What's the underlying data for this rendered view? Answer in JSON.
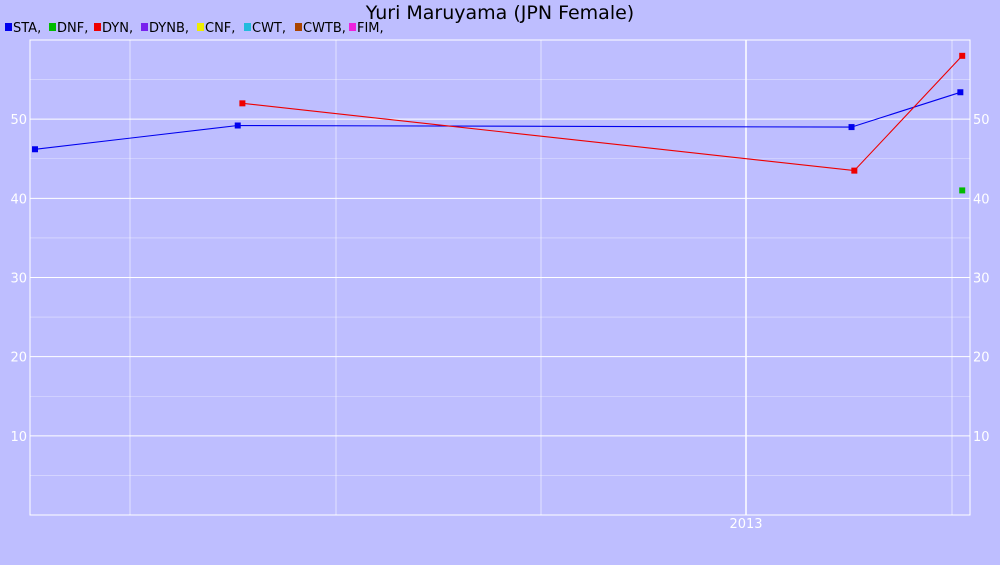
{
  "chart_data": {
    "type": "line",
    "title": "Yuri Maruyama (JPN Female)",
    "legend_position": "top-left",
    "xlabel": "",
    "ylabel": "",
    "x_tick_labels": [
      "2013"
    ],
    "y_ticks": [
      10,
      20,
      30,
      40,
      50
    ],
    "ylim": [
      0,
      60
    ],
    "grid": true,
    "colors": {
      "background": "#bebeff",
      "grid": "#ffffff",
      "axis_text": "#ffffff",
      "title": "#000000"
    },
    "legend": [
      {
        "label": "STA,",
        "color": "#0000ee"
      },
      {
        "label": "DNF,",
        "color": "#00bb00"
      },
      {
        "label": "DYN,",
        "color": "#ee0000"
      },
      {
        "label": "DYNB,",
        "color": "#7722ee"
      },
      {
        "label": "CNF,",
        "color": "#eeee00"
      },
      {
        "label": "CWT,",
        "color": "#22bbdd"
      },
      {
        "label": "CWTB,",
        "color": "#aa4400"
      },
      {
        "label": "FIM,",
        "color": "#ee22dd"
      }
    ],
    "series": [
      {
        "name": "STA",
        "color": "#0000ee",
        "points": [
          [
            0.0,
            46.2
          ],
          [
            0.218,
            49.2
          ],
          [
            0.878,
            49.0
          ],
          [
            0.995,
            53.4
          ]
        ]
      },
      {
        "name": "DNF",
        "color": "#00bb00",
        "points": [
          [
            0.997,
            41.0
          ]
        ]
      },
      {
        "name": "DYN",
        "color": "#ee0000",
        "points": [
          [
            0.223,
            52.0
          ],
          [
            0.881,
            43.5
          ],
          [
            0.997,
            58.0
          ]
        ]
      }
    ]
  }
}
